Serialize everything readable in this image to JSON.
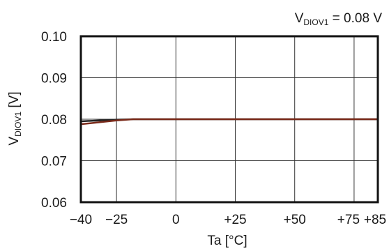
{
  "chart_data": {
    "type": "line",
    "title": "",
    "annotation": {
      "prefix": "V",
      "subscript": "DIOV1",
      "suffix": " = 0.08 V"
    },
    "ylabel": {
      "prefix": "V",
      "subscript": "DIOV1",
      "suffix": " [V]"
    },
    "xlabel": "Ta [°C]",
    "xlim": [
      -40,
      85
    ],
    "ylim": [
      0.06,
      0.1
    ],
    "x_ticks": [
      {
        "value": -40,
        "label": "−40"
      },
      {
        "value": -25,
        "label": "−25"
      },
      {
        "value": 0,
        "label": "0"
      },
      {
        "value": 25,
        "label": "+25"
      },
      {
        "value": 50,
        "label": "+50"
      },
      {
        "value": 75,
        "label": "+75"
      },
      {
        "value": 85,
        "label": "+85"
      }
    ],
    "y_ticks": [
      {
        "value": 0.1,
        "label": "0.10"
      },
      {
        "value": 0.09,
        "label": "0.09"
      },
      {
        "value": 0.08,
        "label": "0.08"
      },
      {
        "value": 0.07,
        "label": "0.07"
      },
      {
        "value": 0.06,
        "label": "0.06"
      }
    ],
    "grid": true,
    "series": [
      {
        "x": [
          -40,
          -25,
          -18,
          0,
          25,
          50,
          75,
          85
        ],
        "y": [
          0.0795,
          0.0799,
          0.08,
          0.08,
          0.08,
          0.08,
          0.08,
          0.08
        ],
        "color": "#222222"
      },
      {
        "x": [
          -40,
          -25,
          -18,
          0,
          25,
          50,
          75,
          85
        ],
        "y": [
          0.0788,
          0.0797,
          0.08,
          0.08,
          0.08,
          0.08,
          0.08,
          0.08
        ],
        "color": "#7a2a1a"
      }
    ]
  }
}
